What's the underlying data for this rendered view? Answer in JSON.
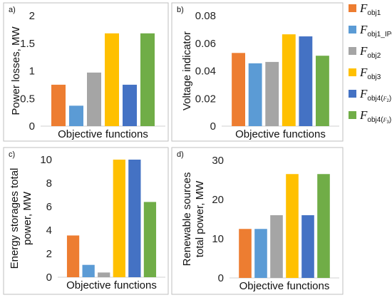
{
  "legend": [
    {
      "main": "F",
      "sub": "obj1",
      "color": "#ED7D31"
    },
    {
      "main": "F",
      "sub": "obj1_IPC",
      "color": "#5B9BD5"
    },
    {
      "main": "F",
      "sub": "obj2",
      "color": "#A5A5A5"
    },
    {
      "main": "F",
      "sub": "obj3",
      "color": "#FFC000"
    },
    {
      "main": "F",
      "sub": "obj4(",
      "subsub": "F",
      "subsubsub": "2",
      "subtail": ")",
      "color": "#4472C4"
    },
    {
      "main": "F",
      "sub": "obj4(",
      "subsub": "F",
      "subsubsub": "3",
      "subtail": ")",
      "color": "#70AD47"
    }
  ],
  "chart_data": [
    {
      "type": "bar",
      "panel": "a)",
      "xlabel": "Objective functions",
      "ylabel": "Power losses, MW",
      "ylabel_lines": [
        "Power losses, MW"
      ],
      "ylim": [
        0,
        2
      ],
      "yticks": [
        "0",
        "0.5",
        "1",
        "1.5",
        "2"
      ],
      "ytick_values": [
        0,
        0.5,
        1,
        1.5,
        2
      ],
      "values": [
        0.75,
        0.37,
        0.97,
        1.68,
        0.75,
        1.68
      ]
    },
    {
      "type": "bar",
      "panel": "b)",
      "xlabel": "Objective functions",
      "ylabel": "Voltage indicator",
      "ylabel_lines": [
        "Voltage indicator"
      ],
      "ylim": [
        0,
        0.08
      ],
      "yticks": [
        "0",
        "0.02",
        "0.04",
        "0.06",
        "0.08"
      ],
      "ytick_values": [
        0,
        0.02,
        0.04,
        0.06,
        0.08
      ],
      "values": [
        0.053,
        0.0455,
        0.0465,
        0.0665,
        0.065,
        0.051
      ]
    },
    {
      "type": "bar",
      "panel": "c)",
      "xlabel": "Objective functions",
      "ylabel": "Energy storages total power, MW",
      "ylabel_lines": [
        "Energy storages total",
        "power, MW"
      ],
      "ylim": [
        0,
        10
      ],
      "yticks": [
        "0",
        "2",
        "4",
        "6",
        "8",
        "10"
      ],
      "ytick_values": [
        0,
        2,
        4,
        6,
        8,
        10
      ],
      "values": [
        3.55,
        1.05,
        0.4,
        10,
        10,
        6.4
      ]
    },
    {
      "type": "bar",
      "panel": "d)",
      "xlabel": "Objective functions",
      "ylabel": "Renewable sources total power, MW",
      "ylabel_lines": [
        "Renewable sources",
        "total power, MW"
      ],
      "ylim": [
        0,
        30
      ],
      "yticks": [
        "0",
        "10",
        "20",
        "30"
      ],
      "ytick_values": [
        0,
        10,
        20,
        30
      ],
      "values": [
        12.5,
        12.5,
        16,
        26.5,
        16,
        26.5
      ]
    }
  ]
}
